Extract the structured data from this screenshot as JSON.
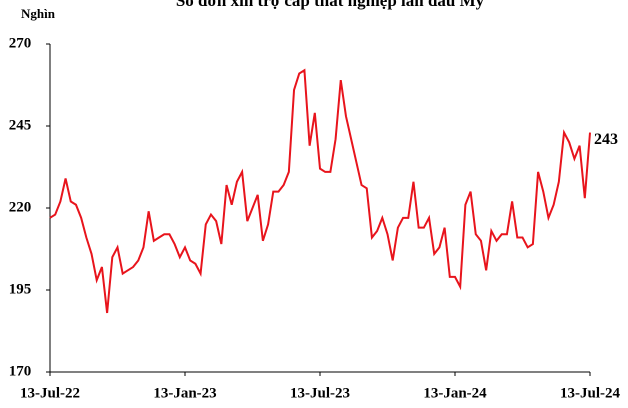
{
  "chart_data": {
    "type": "line",
    "title": "Số đơn xin trợ cấp thất nghiệp lần đầu Mỹ",
    "y_label": "Nghìn",
    "categories": [
      "13-Jul-22",
      null,
      null,
      null,
      null,
      null,
      null,
      null,
      null,
      null,
      null,
      null,
      null,
      null,
      null,
      null,
      null,
      null,
      null,
      null,
      null,
      null,
      null,
      null,
      null,
      null,
      "13-Jan-23",
      null,
      null,
      null,
      null,
      null,
      null,
      null,
      null,
      null,
      null,
      null,
      null,
      null,
      null,
      null,
      null,
      null,
      null,
      null,
      null,
      null,
      null,
      null,
      null,
      null,
      "13-Jul-23",
      null,
      null,
      null,
      null,
      null,
      null,
      null,
      null,
      null,
      null,
      null,
      null,
      null,
      null,
      null,
      null,
      null,
      null,
      null,
      null,
      null,
      null,
      null,
      null,
      null,
      "13-Jan-24",
      null,
      null,
      null,
      null,
      null,
      null,
      null,
      null,
      null,
      null,
      null,
      null,
      null,
      null,
      null,
      null,
      null,
      null,
      null,
      null,
      null,
      null,
      null,
      null,
      null,
      "13-Jul-24"
    ],
    "series": [
      {
        "name": "Số đơn",
        "color": "#e8141c",
        "values": [
          217,
          218,
          222,
          229,
          222,
          221,
          217,
          211,
          206,
          198,
          202,
          188,
          205,
          208,
          200,
          201,
          202,
          204,
          208,
          219,
          210,
          211,
          212,
          212,
          209,
          205,
          208,
          204,
          203,
          200,
          215,
          218,
          216,
          209,
          227,
          221,
          228,
          231,
          216,
          220,
          224,
          210,
          215,
          225,
          225,
          227,
          231,
          256,
          261,
          262,
          239,
          249,
          232,
          231,
          231,
          241,
          259,
          248,
          241,
          234,
          227,
          226,
          211,
          213,
          217,
          212,
          204,
          214,
          217,
          217,
          228,
          214,
          214,
          217,
          206,
          208,
          214,
          199,
          199,
          196,
          221,
          225,
          212,
          210,
          201,
          213,
          210,
          212,
          212,
          222,
          211,
          211,
          208,
          209,
          231,
          225,
          217,
          221,
          228,
          243,
          240,
          235,
          239,
          223,
          243
        ]
      }
    ],
    "ylim": [
      170,
      270
    ],
    "yticks": [
      170,
      195,
      220,
      245,
      270
    ]
  }
}
